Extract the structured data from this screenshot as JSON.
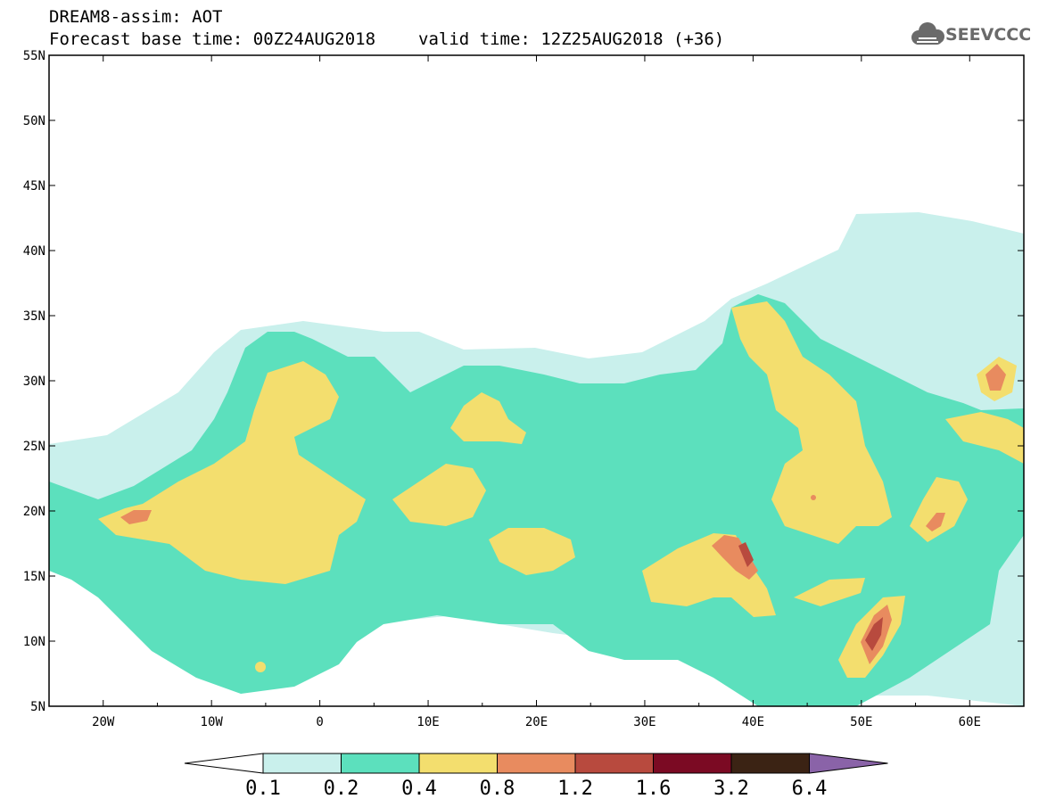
{
  "header": {
    "title": "DREAM8-assim: AOT",
    "base_time": "Forecast base time: 00Z24AUG2018",
    "valid_time": "valid time: 12Z25AUG2018 (+36)"
  },
  "logo": {
    "text": "SEEVCCC",
    "icon": "cloud-icon"
  },
  "map": {
    "lon_range": [
      -25,
      65
    ],
    "lat_range": [
      5,
      55
    ],
    "lat_ticks": [
      "55N",
      "50N",
      "45N",
      "40N",
      "35N",
      "30N",
      "25N",
      "20N",
      "15N",
      "10N",
      "5N"
    ],
    "lon_ticks": [
      "20W",
      "10W",
      "0",
      "10E",
      "20E",
      "30E",
      "40E",
      "50E",
      "60E"
    ]
  },
  "colorbar": {
    "labels": [
      "0.1",
      "0.2",
      "0.4",
      "0.8",
      "1.2",
      "1.6",
      "3.2",
      "6.4"
    ],
    "colors": [
      "#ffffff",
      "#c9f0ec",
      "#5ce0bd",
      "#f3de6e",
      "#e88b5f",
      "#b84a3e",
      "#7b0a23",
      "#3b2314",
      "#8a63a8"
    ]
  },
  "field_colors": {
    "c01": "#c9f0ec",
    "c02": "#5ce0bd",
    "c04": "#f3de6e",
    "c08": "#e88b5f",
    "c12": "#b84a3e",
    "c16": "#7b0a23"
  }
}
